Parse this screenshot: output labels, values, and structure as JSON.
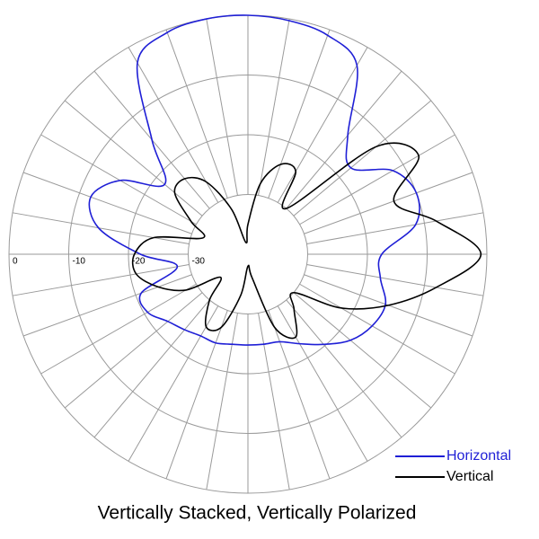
{
  "chart_data": {
    "type": "polar",
    "title": "Vertically Stacked, Vertically Polarized",
    "theta": [
      0,
      10,
      20,
      30,
      40,
      50,
      60,
      70,
      80,
      90,
      100,
      110,
      120,
      130,
      140,
      150,
      160,
      170,
      180,
      190,
      200,
      210,
      220,
      230,
      240,
      250,
      260,
      270,
      280,
      290,
      300,
      310,
      320,
      330,
      340,
      350
    ],
    "rlim": [
      -40,
      0
    ],
    "rticks": [
      -30,
      -20,
      -10,
      0
    ],
    "series": [
      {
        "name": "Horizontal",
        "color": "#1f1fd6",
        "values": [
          0,
          -0.3,
          -1,
          -3.5,
          -14,
          -17.5,
          -12,
          -10,
          -11.5,
          -17.6,
          -17.5,
          -15.5,
          -16,
          -17.6,
          -20.3,
          -22.7,
          -24.4,
          -24.7,
          -24.8,
          -24.7,
          -24.2,
          -24.2,
          -23.5,
          -22.5,
          -20.6,
          -21,
          -28,
          -22,
          -14.6,
          -12,
          -15.3,
          -21.8,
          -15,
          -3,
          -0.5,
          0
        ]
      },
      {
        "name": "Vertical",
        "color": "#000000",
        "values": [
          -35,
          -28,
          -24,
          -24,
          -30,
          -12,
          -7,
          -14,
          -8,
          -1,
          -8,
          -15,
          -22,
          -30,
          -28,
          -24,
          -27,
          -36,
          -38,
          -33,
          -27,
          -26,
          -30,
          -34,
          -28,
          -24,
          -21,
          -21,
          -24,
          -32,
          -29,
          -24,
          -23.5,
          -26,
          -32,
          -38
        ]
      }
    ]
  }
}
